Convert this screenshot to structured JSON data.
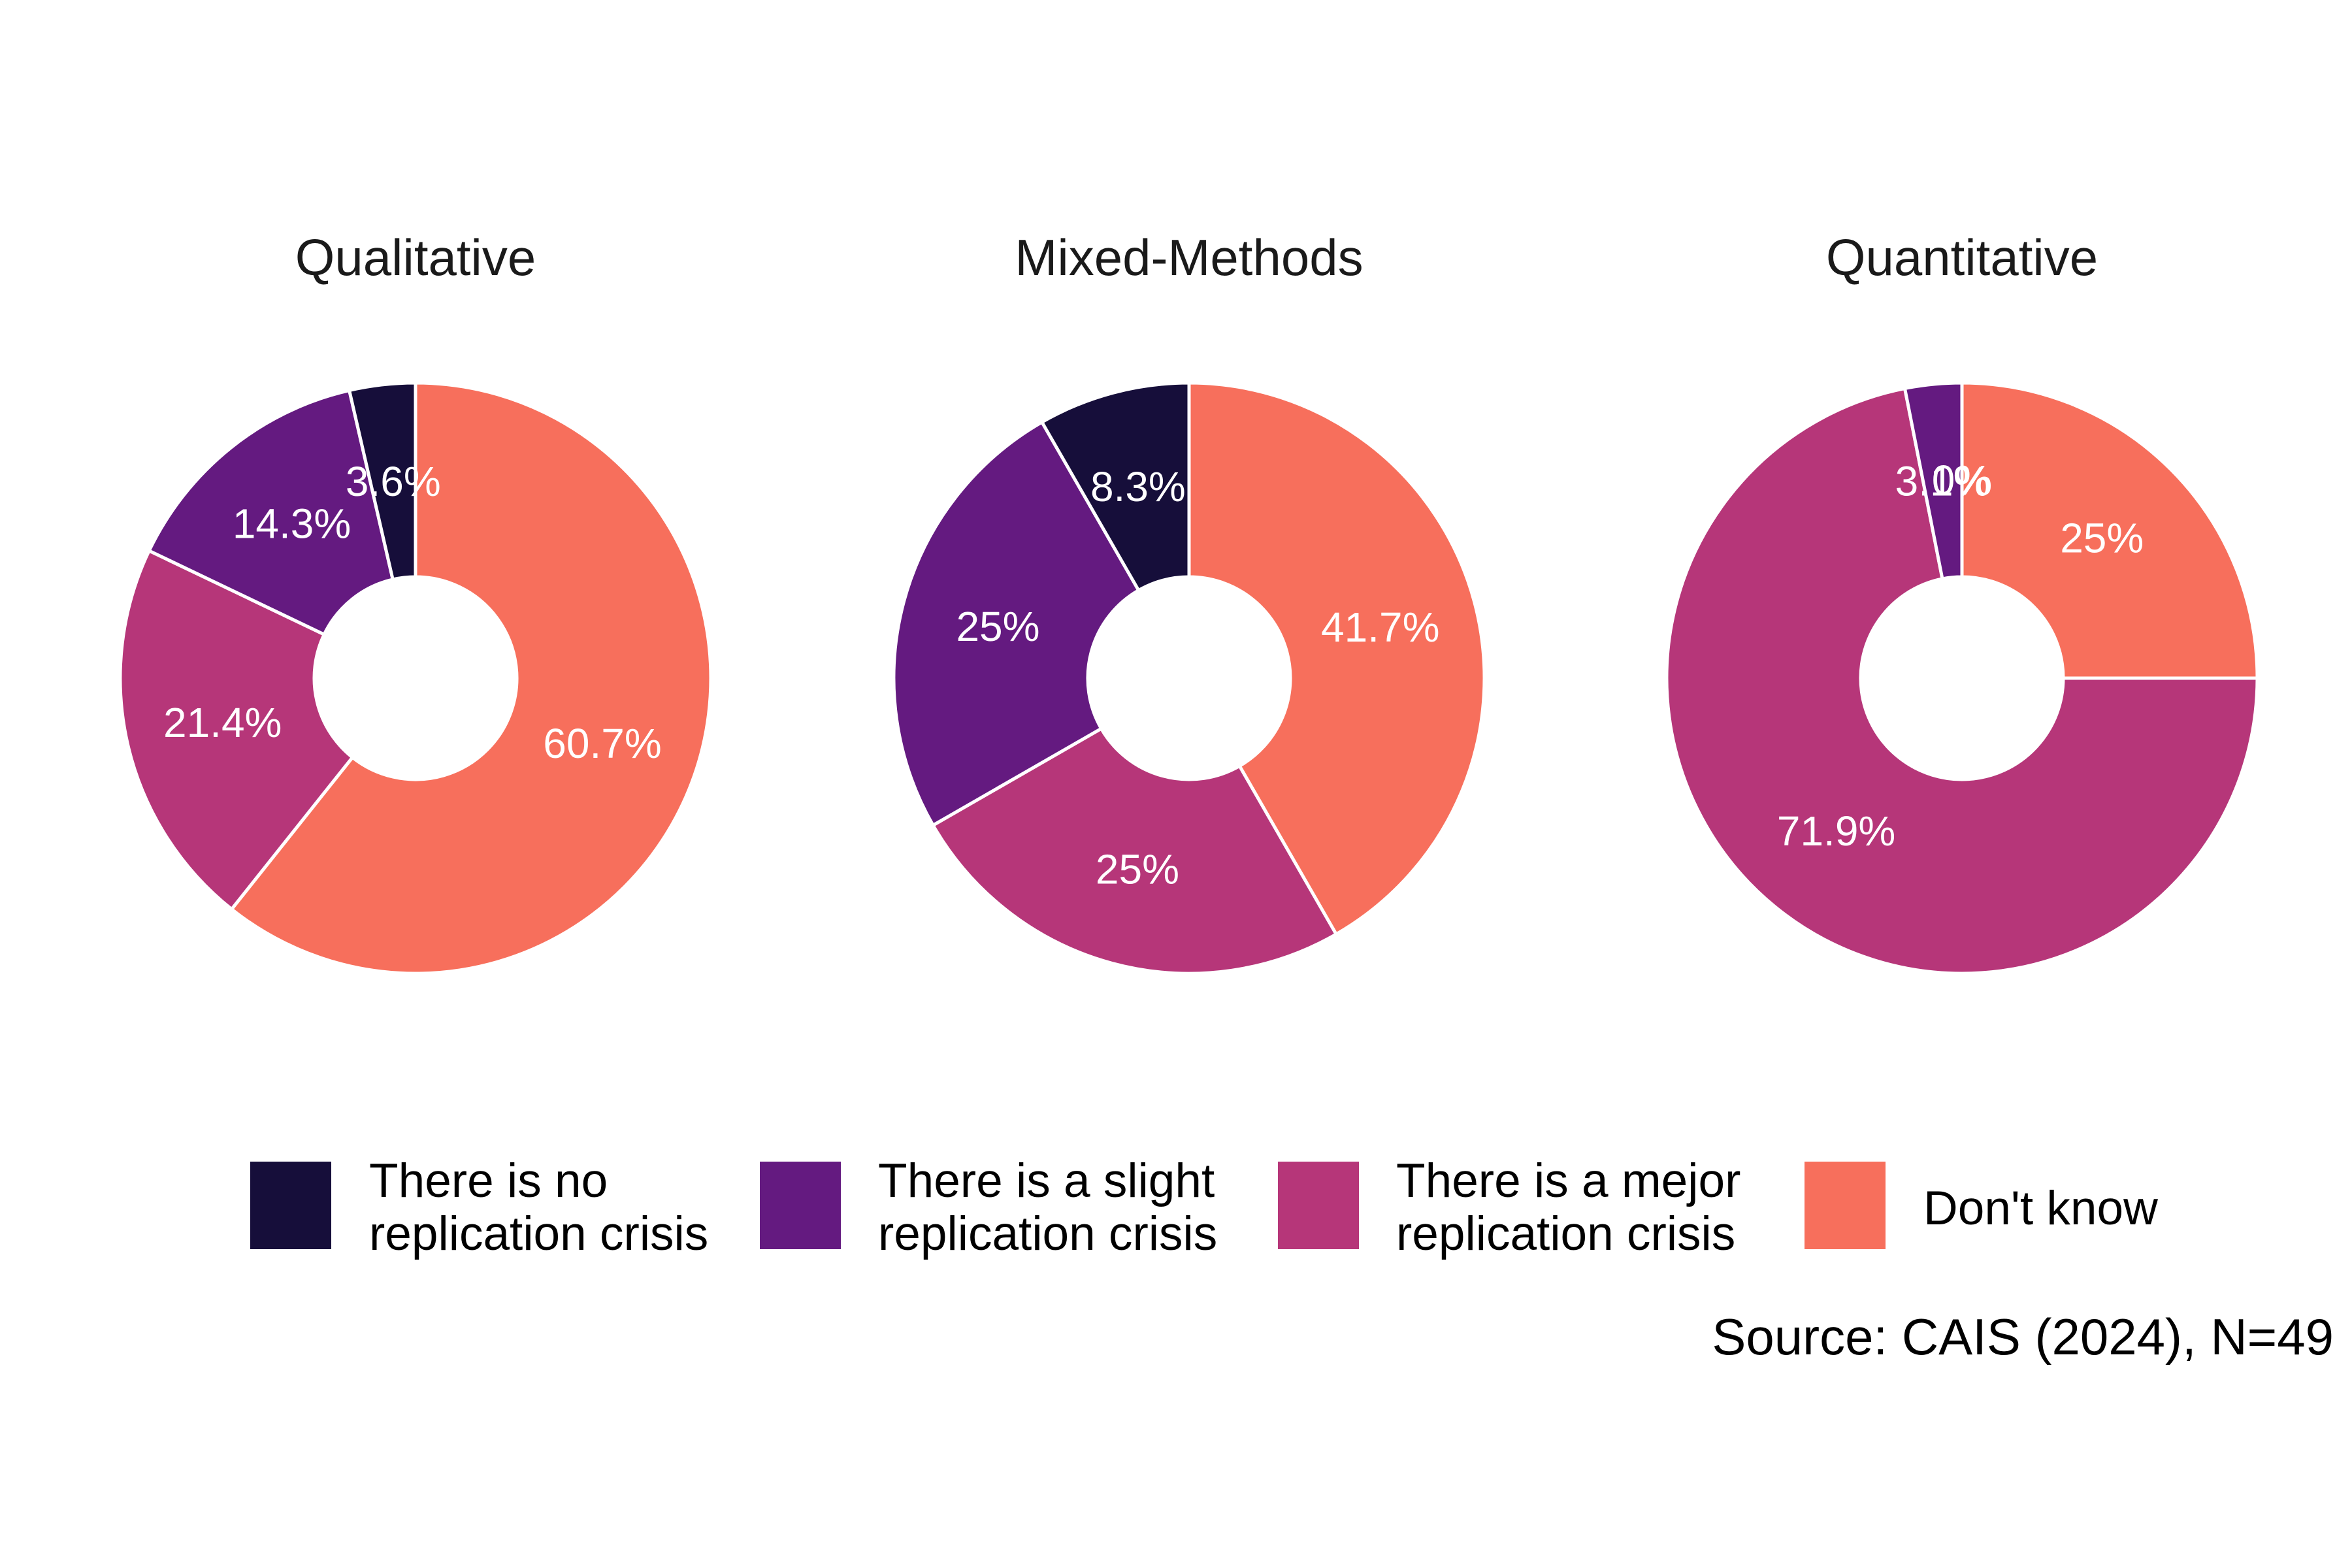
{
  "chart_data": {
    "type": "pie",
    "variant": "donut",
    "colors": [
      "#160E3A",
      "#641A80",
      "#B63679",
      "#F76F5C"
    ],
    "legend": {
      "placement": "bottom",
      "entries": [
        {
          "line1": "There is no",
          "line2": "replication crisis"
        },
        {
          "line1": "There is a slight",
          "line2": "replication crisis"
        },
        {
          "line1": "There is a mejor",
          "line2": "replication crisis"
        },
        {
          "line1": "Don't know",
          "line2": ""
        }
      ]
    },
    "panels": [
      {
        "title": "Qualitative",
        "values": [
          3.6,
          14.3,
          21.4,
          60.7
        ],
        "labels": [
          "3.6%",
          "14.3%",
          "21.4%",
          "60.7%"
        ]
      },
      {
        "title": "Mixed-Methods",
        "values": [
          8.3,
          25,
          25,
          41.7
        ],
        "labels": [
          "8.3%",
          "25%",
          "25%",
          "41.7%"
        ]
      },
      {
        "title": "Quantitative",
        "values": [
          0,
          3.1,
          71.9,
          25
        ],
        "labels": [
          "0%",
          "3.1%",
          "71.9%",
          "25%"
        ]
      }
    ],
    "caption": "Source: CAIS (2024), N=49"
  }
}
